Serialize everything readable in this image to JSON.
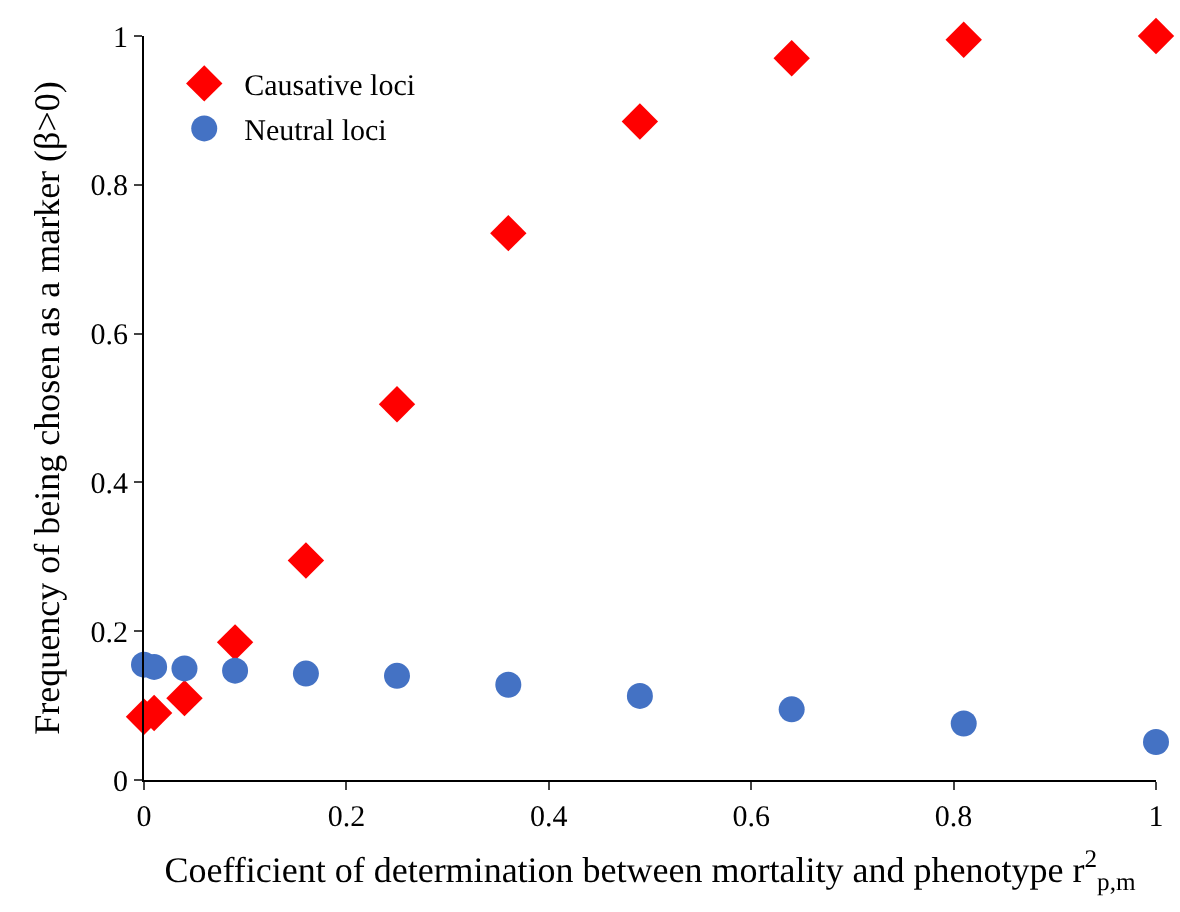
{
  "chart_data": {
    "type": "scatter",
    "xlabel": "Coefficient of determination between mortality and phenotype r$^{2}$$_{p,m}$",
    "ylabel": "Frequency of being chosen as a marker (β>0)",
    "x": [
      0,
      0.01,
      0.04,
      0.09,
      0.16,
      0.25,
      0.36,
      0.49,
      0.64,
      0.81,
      1
    ],
    "series": [
      {
        "name": "Causative loci",
        "color": "#ff0000",
        "marker": "diamond",
        "values": [
          0.085,
          0.09,
          0.11,
          0.185,
          0.295,
          0.505,
          0.735,
          0.885,
          0.97,
          0.995,
          1.0
        ]
      },
      {
        "name": "Neutral loci",
        "color": "#4472c4",
        "marker": "circle",
        "values": [
          0.155,
          0.152,
          0.15,
          0.147,
          0.143,
          0.14,
          0.128,
          0.113,
          0.095,
          0.076,
          0.051
        ]
      }
    ],
    "xlim": [
      0,
      1
    ],
    "xticks": [
      0,
      0.2,
      0.4,
      0.6,
      0.8,
      1
    ],
    "ylim": [
      0,
      1
    ],
    "yticks": [
      0,
      0.2,
      0.4,
      0.6,
      0.8,
      1
    ],
    "grid": false,
    "legend": "top left"
  }
}
